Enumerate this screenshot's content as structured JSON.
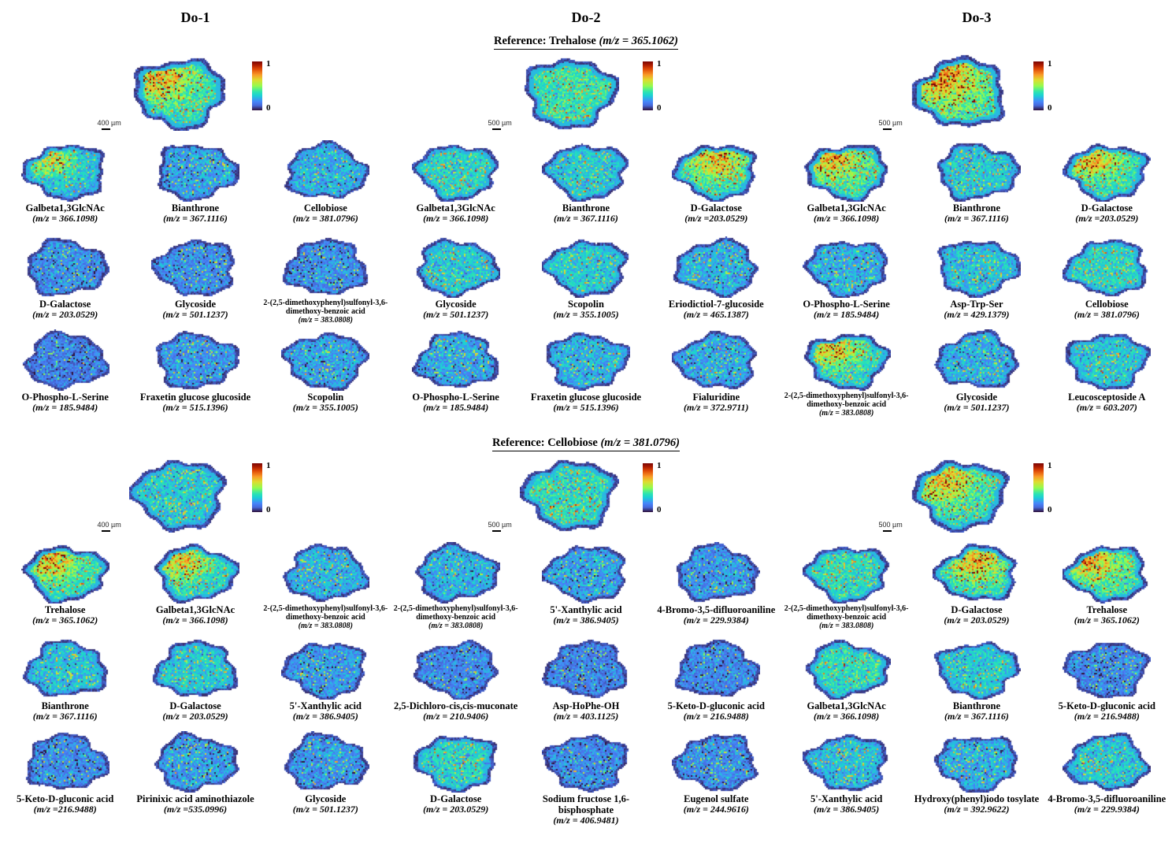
{
  "columns": [
    "Do-1",
    "Do-2",
    "Do-3"
  ],
  "colorbar": {
    "max": "1",
    "min": "0"
  },
  "sections": [
    {
      "title": "Reference: Trehalose",
      "title_mz": "(m/z = 365.1062)",
      "references": [
        {
          "scale": "400 µm",
          "heat": 0.55,
          "hot": "tl"
        },
        {
          "scale": "500 µm",
          "heat": 0.6,
          "hot": ""
        },
        {
          "scale": "500 µm",
          "heat": 0.65,
          "hot": "tl"
        }
      ],
      "rows": [
        [
          {
            "name": "Galbeta1,3GlcNAc",
            "mz": "(m/z = 366.1098)",
            "heat": 0.38,
            "hot": "tl"
          },
          {
            "name": "Bianthrone",
            "mz": "(m/z = 367.1116)",
            "heat": 0.3,
            "hot": ""
          },
          {
            "name": "Cellobiose",
            "mz": "(m/z = 381.0796)",
            "heat": 0.34,
            "hot": ""
          },
          {
            "name": "Galbeta1,3GlcNAc",
            "mz": "(m/z = 366.1098)",
            "heat": 0.5,
            "hot": ""
          },
          {
            "name": "Bianthrone",
            "mz": "(m/z = 367.1116)",
            "heat": 0.45,
            "hot": ""
          },
          {
            "name": "D-Galactose",
            "mz": "(m/z =203.0529)",
            "heat": 0.55,
            "hot": "top"
          },
          {
            "name": "Galbeta1,3GlcNAc",
            "mz": "(m/z = 366.1098)",
            "heat": 0.58,
            "hot": "tl"
          },
          {
            "name": "Bianthrone",
            "mz": "(m/z = 367.1116)",
            "heat": 0.45,
            "hot": ""
          },
          {
            "name": "D-Galactose",
            "mz": "(m/z =203.0529)",
            "heat": 0.55,
            "hot": "tl"
          }
        ],
        [
          {
            "name": "D-Galactose",
            "mz": "(m/z = 203.0529)",
            "heat": 0.22,
            "hot": ""
          },
          {
            "name": "Glycoside",
            "mz": "(m/z = 501.1237)",
            "heat": 0.22,
            "hot": ""
          },
          {
            "name": "2-(2,5-dimethoxyphenyl)sulfonyl-3,6-dimethoxy-benzoic acid",
            "mz": "(m/z = 383.0808)",
            "heat": 0.22,
            "hot": ""
          },
          {
            "name": "Glycoside",
            "mz": "(m/z = 501.1237)",
            "heat": 0.45,
            "hot": ""
          },
          {
            "name": "Scopolin",
            "mz": "(m/z = 355.1005)",
            "heat": 0.45,
            "hot": ""
          },
          {
            "name": "Eriodictiol-7-glucoside",
            "mz": "(m/z = 465.1387)",
            "heat": 0.35,
            "hot": ""
          },
          {
            "name": "O-Phospho-L-Serine",
            "mz": "(m/z = 185.9484)",
            "heat": 0.35,
            "hot": ""
          },
          {
            "name": "Asp-Trp-Ser",
            "mz": "(m/z = 429.1379)",
            "heat": 0.42,
            "hot": ""
          },
          {
            "name": "Cellobiose",
            "mz": "(m/z = 381.0796)",
            "heat": 0.5,
            "hot": ""
          }
        ],
        [
          {
            "name": "O-Phospho-L-Serine",
            "mz": "(m/z = 185.9484)",
            "heat": 0.15,
            "hot": ""
          },
          {
            "name": "Fraxetin glucose glucoside",
            "mz": "(m/z = 515.1396)",
            "heat": 0.25,
            "hot": ""
          },
          {
            "name": "Scopolin",
            "mz": "(m/z = 355.1005)",
            "heat": 0.3,
            "hot": ""
          },
          {
            "name": "O-Phospho-L-Serine",
            "mz": "(m/z = 185.9484)",
            "heat": 0.32,
            "hot": ""
          },
          {
            "name": "Fraxetin glucose glucoside",
            "mz": "(m/z = 515.1396)",
            "heat": 0.35,
            "hot": ""
          },
          {
            "name": "Fialuridine",
            "mz": "(m/z = 372.9711)",
            "heat": 0.32,
            "hot": ""
          },
          {
            "name": "2-(2,5-dimethoxyphenyl)sulfonyl-3,6-dimethoxy-benzoic acid",
            "mz": "(m/z = 383.0808)",
            "heat": 0.5,
            "hot": "tl"
          },
          {
            "name": "Glycoside",
            "mz": "(m/z = 501.1237)",
            "heat": 0.35,
            "hot": ""
          },
          {
            "name": "Leucosceptoside A",
            "mz": "(m/z = 603.207)",
            "heat": 0.45,
            "hot": ""
          }
        ]
      ]
    },
    {
      "title": "Reference: Cellobiose",
      "title_mz": "(m/z = 381.0796)",
      "references": [
        {
          "scale": "400 µm",
          "heat": 0.45,
          "hot": ""
        },
        {
          "scale": "500 µm",
          "heat": 0.55,
          "hot": ""
        },
        {
          "scale": "500 µm",
          "heat": 0.55,
          "hot": "tl"
        }
      ],
      "rows": [
        [
          {
            "name": "Trehalose",
            "mz": "(m/z = 365.1062)",
            "heat": 0.55,
            "hot": "tl"
          },
          {
            "name": "Galbeta1,3GlcNAc",
            "mz": "(m/z = 366.1098)",
            "heat": 0.5,
            "hot": "tl"
          },
          {
            "name": "2-(2,5-dimethoxyphenyl)sulfonyl-3,6-dimethoxy-benzoic acid",
            "mz": "(m/z = 383.0808)",
            "heat": 0.35,
            "hot": ""
          },
          {
            "name": "2-(2,5-dimethoxyphenyl)sulfonyl-3,6-dimethoxy-benzoic acid",
            "mz": "(m/z = 383.0808)",
            "heat": 0.35,
            "hot": ""
          },
          {
            "name": "5'-Xanthylic acid",
            "mz": "(m/z = 386.9405)",
            "heat": 0.3,
            "hot": ""
          },
          {
            "name": "4-Bromo-3,5-difluoroaniline",
            "mz": "(m/z = 229.9384)",
            "heat": 0.25,
            "hot": ""
          },
          {
            "name": "2-(2,5-dimethoxyphenyl)sulfonyl-3,6-dimethoxy-benzoic acid",
            "mz": "(m/z = 383.0808)",
            "heat": 0.55,
            "hot": ""
          },
          {
            "name": "D-Galactose",
            "mz": "(m/z = 203.0529)",
            "heat": 0.55,
            "hot": "top"
          },
          {
            "name": "Trehalose",
            "mz": "(m/z = 365.1062)",
            "heat": 0.58,
            "hot": "tl"
          }
        ],
        [
          {
            "name": "Bianthrone",
            "mz": "(m/z = 367.1116)",
            "heat": 0.4,
            "hot": ""
          },
          {
            "name": "D-Galactose",
            "mz": "(m/z = 203.0529)",
            "heat": 0.45,
            "hot": ""
          },
          {
            "name": "5'-Xanthylic acid",
            "mz": "(m/z = 386.9405)",
            "heat": 0.26,
            "hot": ""
          },
          {
            "name": "2,5-Dichloro-cis,cis-muconate",
            "mz": "(m/z = 210.9406)",
            "heat": 0.2,
            "hot": ""
          },
          {
            "name": "Asp-HoPhe-OH",
            "mz": "(m/z = 403.1125)",
            "heat": 0.18,
            "hot": ""
          },
          {
            "name": "5-Keto-D-gluconic acid",
            "mz": "(m/z = 216.9488)",
            "heat": 0.2,
            "hot": ""
          },
          {
            "name": "Galbeta1,3GlcNAc",
            "mz": "(m/z = 366.1098)",
            "heat": 0.55,
            "hot": ""
          },
          {
            "name": "Bianthrone",
            "mz": "(m/z = 367.1116)",
            "heat": 0.45,
            "hot": ""
          },
          {
            "name": "5-Keto-D-gluconic acid",
            "mz": "(m/z = 216.9488)",
            "heat": 0.2,
            "hot": ""
          }
        ],
        [
          {
            "name": "5-Keto-D-gluconic acid",
            "mz": "(m/z =216.9488)",
            "heat": 0.2,
            "hot": ""
          },
          {
            "name": "Pirinixic acid aminothiazole",
            "mz": "(m/z =535.0996)",
            "heat": 0.28,
            "hot": ""
          },
          {
            "name": "Glycoside",
            "mz": "(m/z = 501.1237)",
            "heat": 0.25,
            "hot": ""
          },
          {
            "name": "D-Galactose",
            "mz": "(m/z = 203.0529)",
            "heat": 0.5,
            "hot": ""
          },
          {
            "name": "Sodium fructose 1,6-bisphosphate",
            "mz": "(m/z = 406.9481)",
            "heat": 0.2,
            "hot": ""
          },
          {
            "name": "Eugenol sulfate",
            "mz": "(m/z = 244.9616)",
            "heat": 0.22,
            "hot": ""
          },
          {
            "name": "5'-Xanthylic acid",
            "mz": "(m/z = 386.9405)",
            "heat": 0.4,
            "hot": ""
          },
          {
            "name": "Hydroxy(phenyl)iodo tosylate",
            "mz": "(m/z = 392.9622)",
            "heat": 0.35,
            "hot": ""
          },
          {
            "name": "4-Bromo-3,5-difluoroaniline",
            "mz": "(m/z = 229.9384)",
            "heat": 0.45,
            "hot": ""
          }
        ]
      ]
    }
  ]
}
